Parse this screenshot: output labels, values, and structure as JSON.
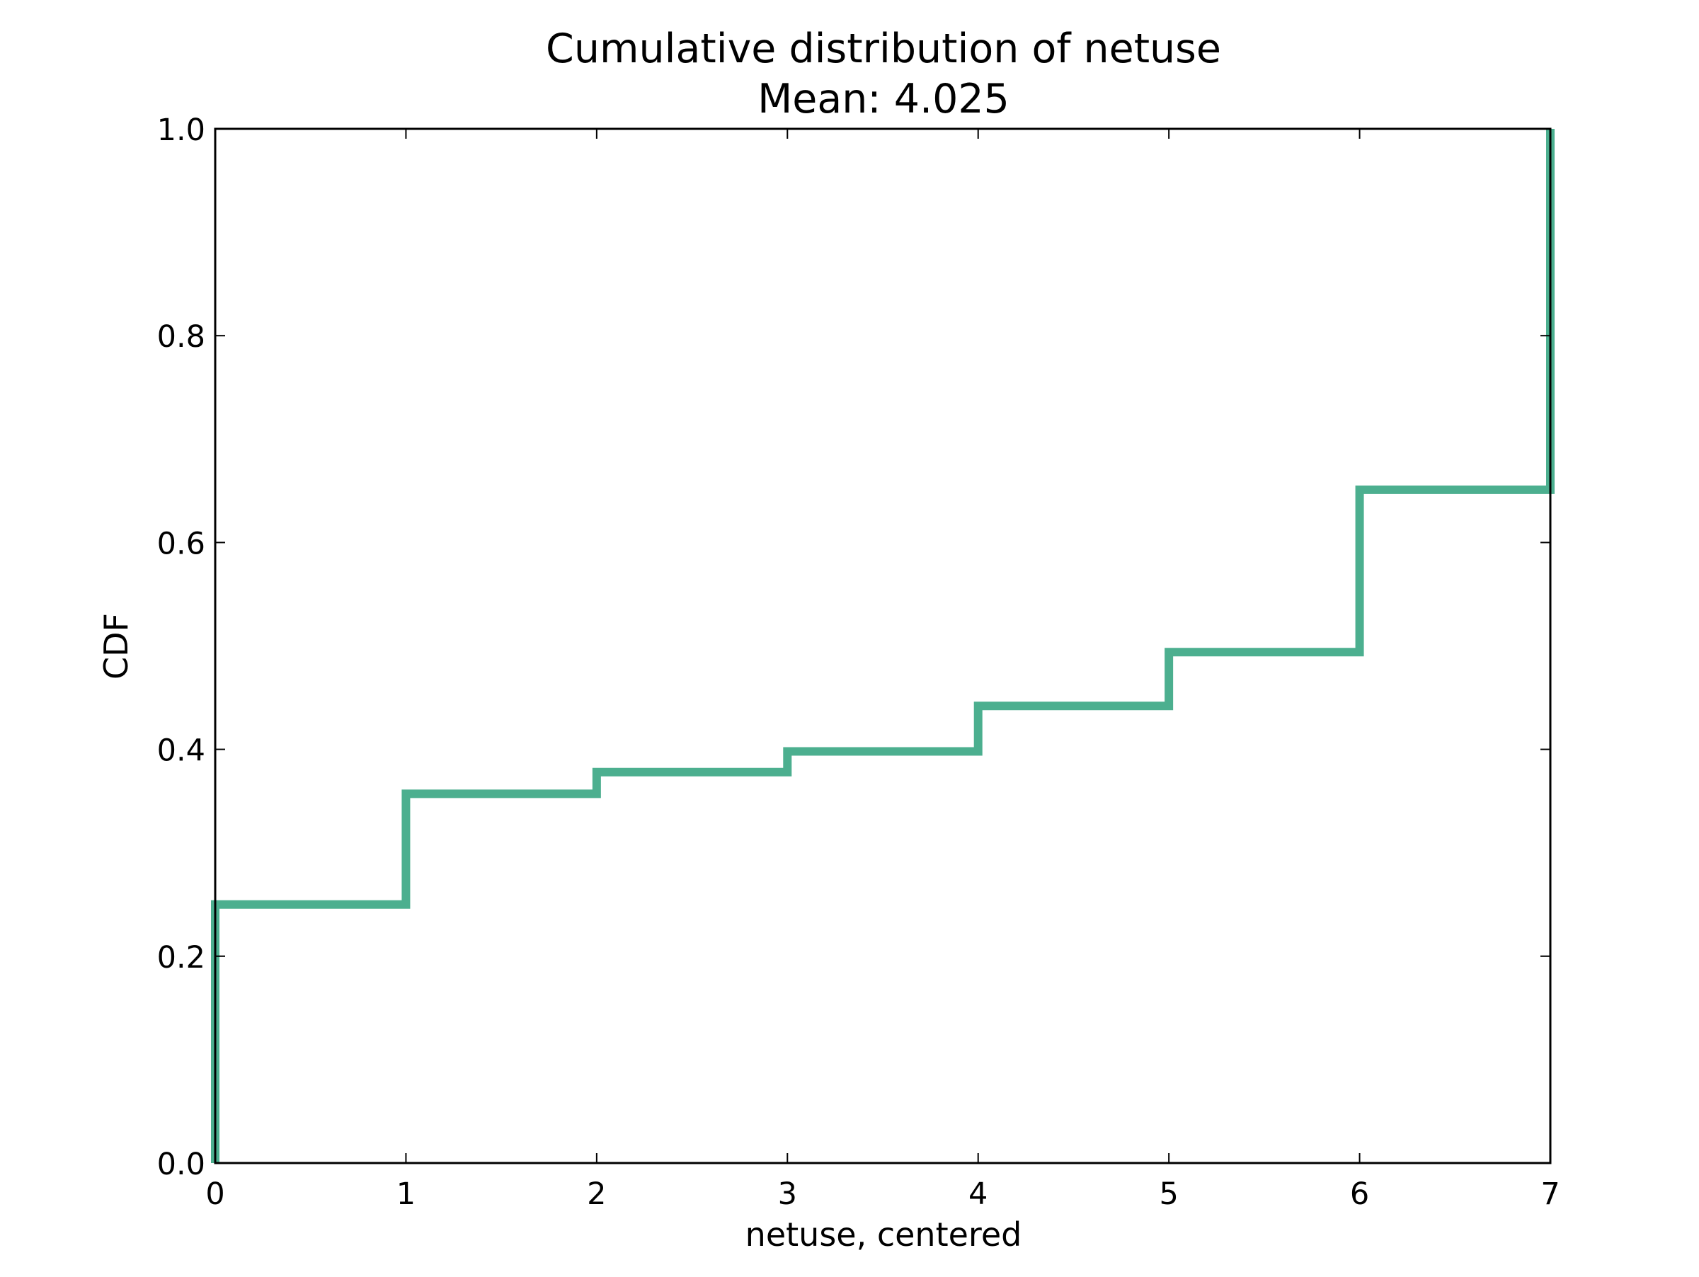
{
  "chart_data": {
    "type": "line",
    "drawstyle": "steps-post",
    "title_line1": "Cumulative distribution of netuse",
    "title_line2": "Mean: 4.025",
    "xlabel": "netuse, centered",
    "ylabel": "CDF",
    "xlim": [
      0,
      7
    ],
    "ylim": [
      0.0,
      1.0
    ],
    "x_ticks": [
      0,
      1,
      2,
      3,
      4,
      5,
      6,
      7
    ],
    "x_tick_labels": [
      "0",
      "1",
      "2",
      "3",
      "4",
      "5",
      "6",
      "7"
    ],
    "y_ticks": [
      0.0,
      0.2,
      0.4,
      0.6,
      0.8,
      1.0
    ],
    "y_tick_labels": [
      "0.0",
      "0.2",
      "0.4",
      "0.6",
      "0.8",
      "1.0"
    ],
    "grid": false,
    "legend": false,
    "line_color": "#4caf8f",
    "series": [
      {
        "x": [
          0,
          0,
          1,
          2,
          3,
          4,
          5,
          6,
          7
        ],
        "y": [
          0.0,
          0.25,
          0.357,
          0.378,
          0.398,
          0.442,
          0.494,
          0.651,
          1.0
        ]
      }
    ]
  }
}
